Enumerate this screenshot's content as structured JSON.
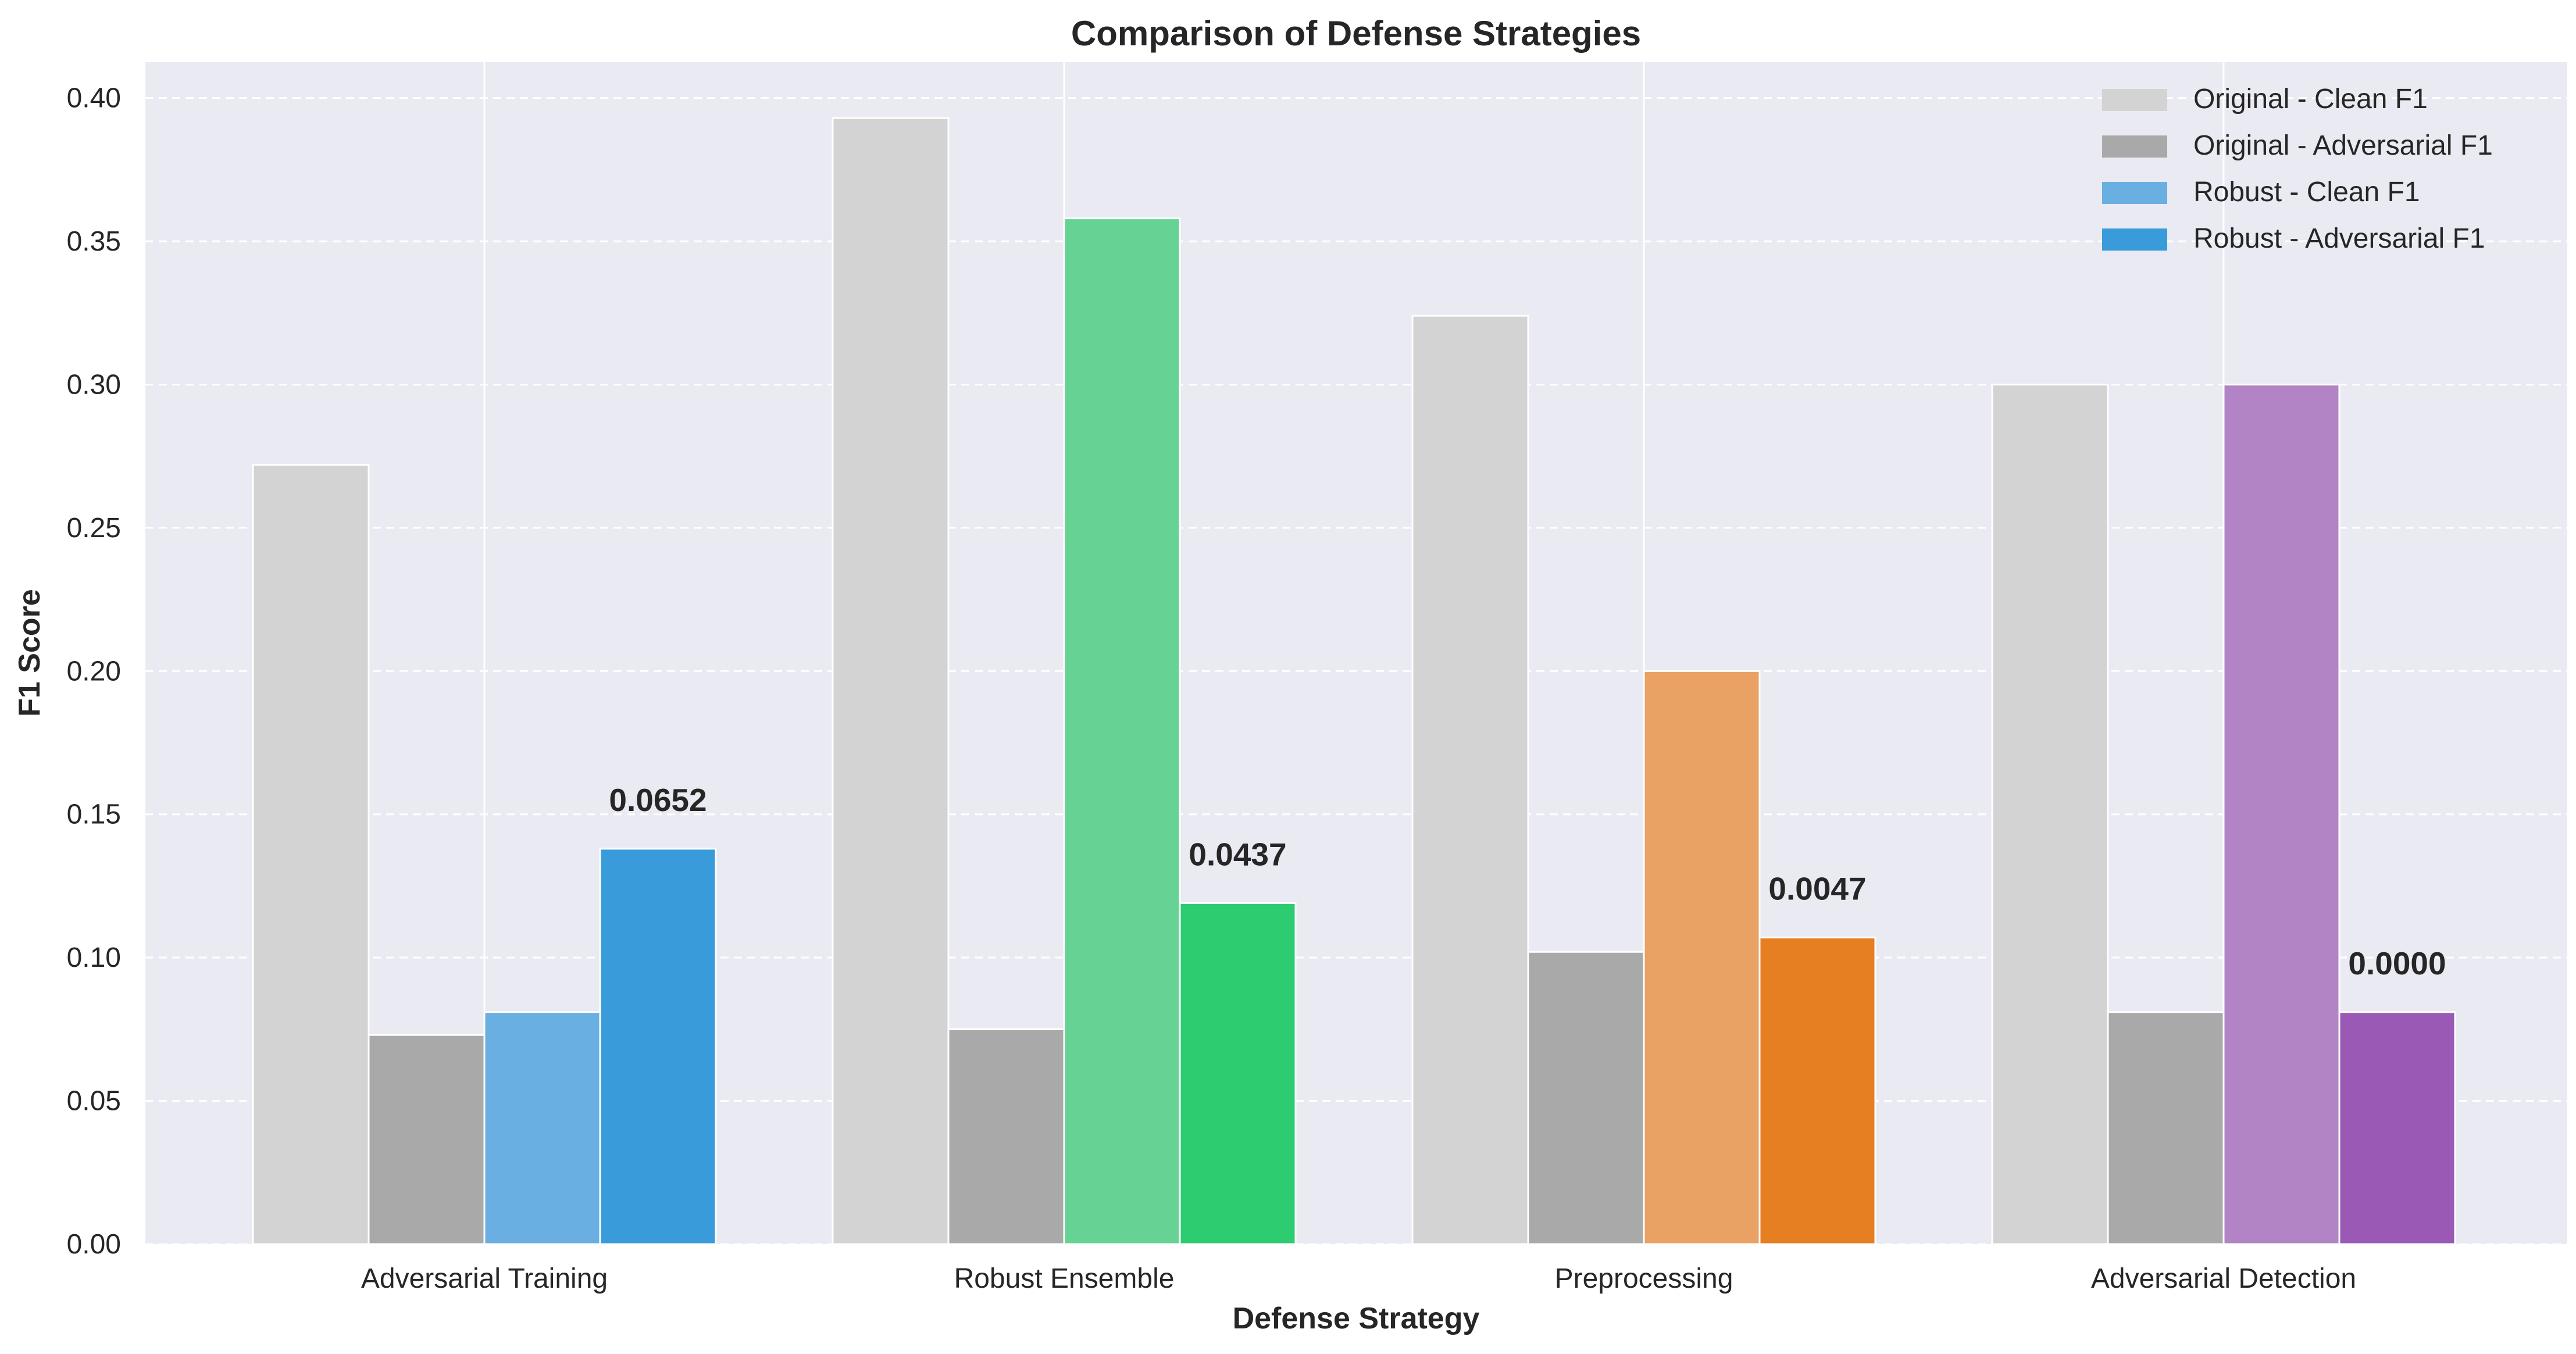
{
  "chart_data": {
    "type": "bar",
    "title": "Comparison of Defense Strategies",
    "xlabel": "Defense Strategy",
    "ylabel": "F1 Score",
    "ylim": [
      0,
      0.4125
    ],
    "yticks": [
      "0.00",
      "0.05",
      "0.10",
      "0.15",
      "0.20",
      "0.25",
      "0.30",
      "0.35",
      "0.40"
    ],
    "categories": [
      "Adversarial Training",
      "Robust Ensemble",
      "Preprocessing",
      "Adversarial Detection"
    ],
    "series": [
      {
        "name": "Original - Clean F1",
        "values": [
          0.272,
          0.393,
          0.324,
          0.3
        ]
      },
      {
        "name": "Original - Adversarial F1",
        "values": [
          0.073,
          0.075,
          0.102,
          0.081
        ]
      },
      {
        "name": "Robust - Clean F1",
        "values": [
          0.081,
          0.358,
          0.2,
          0.3
        ]
      },
      {
        "name": "Robust - Adversarial F1",
        "values": [
          0.138,
          0.119,
          0.107,
          0.081
        ]
      }
    ],
    "bar_colors": [
      [
        "#d3d3d3",
        "#a9a9a9",
        "#6aafe1",
        "#3a9bdb"
      ],
      [
        "#d3d3d3",
        "#a9a9a9",
        "#66d294",
        "#2ecc71"
      ],
      [
        "#d3d3d3",
        "#a9a9a9",
        "#e9a164",
        "#e67e22"
      ],
      [
        "#d3d3d3",
        "#a9a9a9",
        "#b284c6",
        "#9b59b6"
      ]
    ],
    "legend_colors": [
      "#d3d3d3",
      "#a9a9a9",
      "#6aafe1",
      "#3a9bdb"
    ],
    "annotations": [
      "0.0652",
      "0.0437",
      "0.0047",
      "0.0000"
    ],
    "legend_position": "top-right",
    "grid": true,
    "background": "#eaeaf2"
  }
}
